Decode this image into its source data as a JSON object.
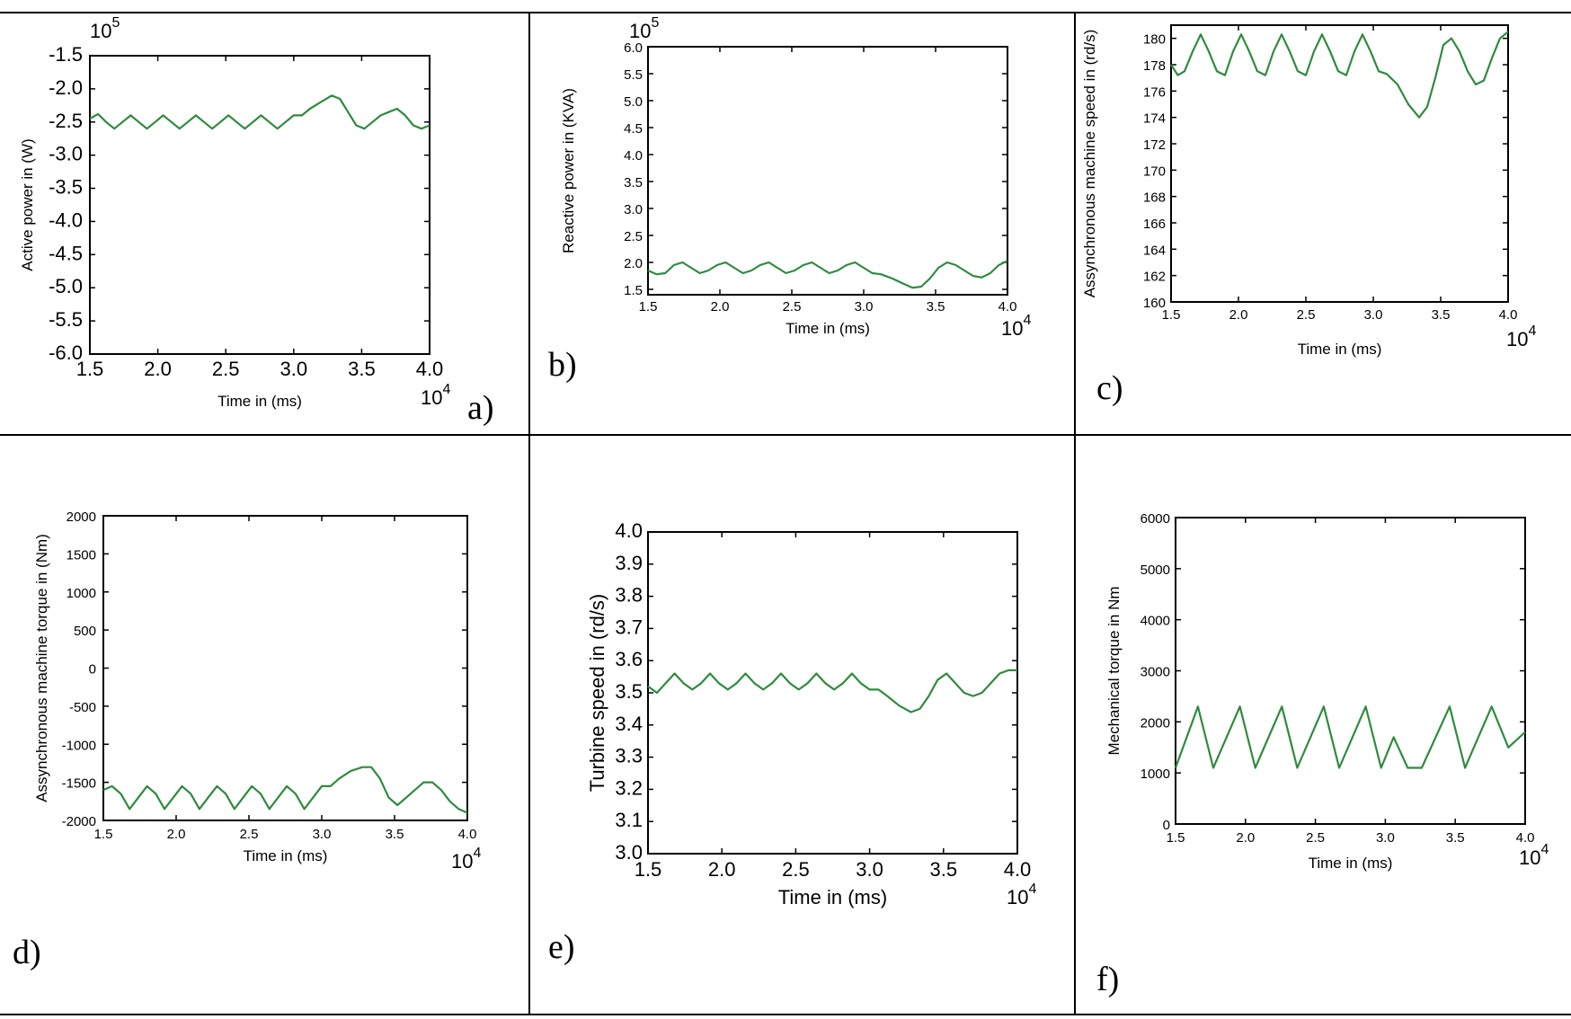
{
  "colors": {
    "line": "#2e8b3e",
    "grid": "#000000",
    "frame": "#000000",
    "background": "#ffffff"
  },
  "chart_data": [
    {
      "panel": "a)",
      "type": "line",
      "title": "",
      "xlabel": "Time in (ms)",
      "ylabel": "Active power in (W)",
      "xlim": [
        1.5,
        4.0
      ],
      "ylim": [
        -6.0,
        -1.5
      ],
      "x_multiplier": "10^4",
      "y_multiplier": "10^5",
      "xticks": [
        "1.5",
        "2.0",
        "2.5",
        "3.0",
        "3.5",
        "4.0"
      ],
      "yticks": [
        "-1.5",
        "-2.0",
        "-2.5",
        "-3.0",
        "-3.5",
        "-4.0",
        "-4.5",
        "-5.0",
        "-5.5",
        "-6.0"
      ],
      "series": [
        {
          "x": [
            1.5,
            1.56,
            1.62,
            1.68,
            1.74,
            1.8,
            1.86,
            1.92,
            1.98,
            2.04,
            2.1,
            2.16,
            2.22,
            2.28,
            2.34,
            2.4,
            2.46,
            2.52,
            2.58,
            2.64,
            2.7,
            2.76,
            2.82,
            2.88,
            2.94,
            3.0,
            3.06,
            3.12,
            3.2,
            3.28,
            3.34,
            3.4,
            3.46,
            3.52,
            3.58,
            3.64,
            3.7,
            3.76,
            3.82,
            3.88,
            3.94,
            4.0
          ],
          "y": [
            -2.45,
            -2.38,
            -2.5,
            -2.6,
            -2.5,
            -2.4,
            -2.5,
            -2.6,
            -2.5,
            -2.4,
            -2.5,
            -2.6,
            -2.5,
            -2.4,
            -2.5,
            -2.6,
            -2.5,
            -2.4,
            -2.5,
            -2.6,
            -2.5,
            -2.4,
            -2.5,
            -2.6,
            -2.5,
            -2.4,
            -2.4,
            -2.3,
            -2.2,
            -2.1,
            -2.15,
            -2.35,
            -2.55,
            -2.6,
            -2.5,
            -2.4,
            -2.35,
            -2.3,
            -2.4,
            -2.55,
            -2.6,
            -2.55
          ]
        }
      ]
    },
    {
      "panel": "b)",
      "type": "line",
      "title": "",
      "xlabel": "Time in (ms)",
      "ylabel": "Reactive power in (KVA)",
      "xlim": [
        1.5,
        4.0
      ],
      "ylim": [
        1.4,
        6.0
      ],
      "x_multiplier": "10^4",
      "y_multiplier": "10^5",
      "xticks": [
        "1.5",
        "2.0",
        "2.5",
        "3.0",
        "3.5",
        "4.0"
      ],
      "yticks": [
        "6.0",
        "5.5",
        "5.0",
        "4.5",
        "4.0",
        "3.5",
        "3.0",
        "2.5",
        "2.0",
        "1.5"
      ],
      "series": [
        {
          "x": [
            1.5,
            1.56,
            1.62,
            1.68,
            1.74,
            1.8,
            1.86,
            1.92,
            1.98,
            2.04,
            2.1,
            2.16,
            2.22,
            2.28,
            2.34,
            2.4,
            2.46,
            2.52,
            2.58,
            2.64,
            2.7,
            2.76,
            2.82,
            2.88,
            2.94,
            3.0,
            3.06,
            3.12,
            3.2,
            3.28,
            3.34,
            3.4,
            3.46,
            3.52,
            3.58,
            3.64,
            3.7,
            3.76,
            3.82,
            3.88,
            3.94,
            4.0
          ],
          "y": [
            1.85,
            1.78,
            1.8,
            1.95,
            2.0,
            1.9,
            1.8,
            1.85,
            1.95,
            2.0,
            1.9,
            1.8,
            1.85,
            1.95,
            2.0,
            1.9,
            1.8,
            1.85,
            1.95,
            2.0,
            1.9,
            1.8,
            1.85,
            1.95,
            2.0,
            1.9,
            1.8,
            1.78,
            1.7,
            1.6,
            1.53,
            1.55,
            1.7,
            1.9,
            2.0,
            1.95,
            1.85,
            1.75,
            1.72,
            1.8,
            1.95,
            2.03
          ]
        }
      ]
    },
    {
      "panel": "c)",
      "type": "line",
      "title": "",
      "xlabel": "Time in (ms)",
      "ylabel": "Assynchronous machine speed in (rd/s)",
      "xlim": [
        1.5,
        4.0
      ],
      "ylim": [
        160,
        181
      ],
      "x_multiplier": "10^4",
      "xticks": [
        "1.5",
        "2.0",
        "2.5",
        "3.0",
        "3.5",
        "4.0"
      ],
      "yticks": [
        "180",
        "178",
        "176",
        "174",
        "172",
        "170",
        "168",
        "166",
        "164",
        "162",
        "160"
      ],
      "series": [
        {
          "x": [
            1.5,
            1.55,
            1.6,
            1.66,
            1.72,
            1.78,
            1.84,
            1.9,
            1.96,
            2.02,
            2.08,
            2.14,
            2.2,
            2.26,
            2.32,
            2.38,
            2.44,
            2.5,
            2.56,
            2.62,
            2.68,
            2.74,
            2.8,
            2.86,
            2.92,
            2.98,
            3.04,
            3.1,
            3.18,
            3.26,
            3.34,
            3.4,
            3.46,
            3.52,
            3.58,
            3.64,
            3.7,
            3.76,
            3.82,
            3.88,
            3.94,
            4.0
          ],
          "y": [
            178.0,
            177.2,
            177.5,
            179.0,
            180.3,
            179.0,
            177.5,
            177.2,
            179.0,
            180.3,
            179.0,
            177.5,
            177.2,
            179.0,
            180.3,
            179.0,
            177.5,
            177.2,
            179.0,
            180.3,
            179.0,
            177.5,
            177.2,
            179.0,
            180.3,
            179.0,
            177.5,
            177.3,
            176.5,
            175.0,
            174.0,
            174.8,
            177.0,
            179.5,
            180.0,
            179.0,
            177.5,
            176.5,
            176.8,
            178.5,
            180.0,
            180.5
          ]
        }
      ]
    },
    {
      "panel": "d)",
      "type": "line",
      "title": "",
      "xlabel": "Time in (ms)",
      "ylabel": "Assynchronous machine torque  in (Nm)",
      "xlim": [
        1.5,
        4.0
      ],
      "ylim": [
        -2000,
        2000
      ],
      "x_multiplier": "10^4",
      "xticks": [
        "1.5",
        "2.0",
        "2.5",
        "3.0",
        "3.5",
        "4.0"
      ],
      "yticks": [
        "2000",
        "1500",
        "1000",
        "500",
        "0",
        "-500",
        "-1000",
        "-1500",
        "-2000"
      ],
      "series": [
        {
          "x": [
            1.5,
            1.56,
            1.62,
            1.68,
            1.74,
            1.8,
            1.86,
            1.92,
            1.98,
            2.04,
            2.1,
            2.16,
            2.22,
            2.28,
            2.34,
            2.4,
            2.46,
            2.52,
            2.58,
            2.64,
            2.7,
            2.76,
            2.82,
            2.88,
            2.94,
            3.0,
            3.06,
            3.12,
            3.2,
            3.28,
            3.34,
            3.4,
            3.46,
            3.52,
            3.58,
            3.64,
            3.7,
            3.76,
            3.82,
            3.88,
            3.94,
            4.0
          ],
          "y": [
            -1600,
            -1550,
            -1650,
            -1850,
            -1700,
            -1550,
            -1650,
            -1850,
            -1700,
            -1550,
            -1650,
            -1850,
            -1700,
            -1550,
            -1650,
            -1850,
            -1700,
            -1550,
            -1650,
            -1850,
            -1700,
            -1550,
            -1650,
            -1850,
            -1700,
            -1550,
            -1550,
            -1450,
            -1350,
            -1300,
            -1300,
            -1450,
            -1700,
            -1800,
            -1700,
            -1600,
            -1500,
            -1500,
            -1600,
            -1750,
            -1850,
            -1900
          ]
        }
      ]
    },
    {
      "panel": "e)",
      "type": "line",
      "title": "",
      "xlabel": "Time in (ms)",
      "ylabel": "Turbine speed in (rd/s)",
      "xlim": [
        1.5,
        4.0
      ],
      "ylim": [
        3.0,
        4.0
      ],
      "x_multiplier": "10^4",
      "xticks": [
        "1.5",
        "2.0",
        "2.5",
        "3.0",
        "3.5",
        "4.0"
      ],
      "yticks": [
        "4.0",
        "3.9",
        "3.8",
        "3.7",
        "3.6",
        "3.5",
        "3.4",
        "3.3",
        "3.2",
        "3.1",
        "3.0"
      ],
      "series": [
        {
          "x": [
            1.5,
            1.56,
            1.62,
            1.68,
            1.74,
            1.8,
            1.86,
            1.92,
            1.98,
            2.04,
            2.1,
            2.16,
            2.22,
            2.28,
            2.34,
            2.4,
            2.46,
            2.52,
            2.58,
            2.64,
            2.7,
            2.76,
            2.82,
            2.88,
            2.94,
            3.0,
            3.06,
            3.12,
            3.2,
            3.28,
            3.34,
            3.4,
            3.46,
            3.52,
            3.58,
            3.64,
            3.7,
            3.76,
            3.82,
            3.88,
            3.94,
            4.0
          ],
          "y": [
            3.52,
            3.5,
            3.53,
            3.56,
            3.53,
            3.51,
            3.53,
            3.56,
            3.53,
            3.51,
            3.53,
            3.56,
            3.53,
            3.51,
            3.53,
            3.56,
            3.53,
            3.51,
            3.53,
            3.56,
            3.53,
            3.51,
            3.53,
            3.56,
            3.53,
            3.51,
            3.51,
            3.49,
            3.46,
            3.44,
            3.45,
            3.49,
            3.54,
            3.56,
            3.53,
            3.5,
            3.49,
            3.5,
            3.53,
            3.56,
            3.57,
            3.57
          ]
        }
      ]
    },
    {
      "panel": "f)",
      "type": "line",
      "title": "",
      "xlabel": "Time in (ms)",
      "ylabel": "Mechanical torque in Nm",
      "xlim": [
        1.5,
        4.0
      ],
      "ylim": [
        0,
        6000
      ],
      "x_multiplier": "10^4",
      "xticks": [
        "1.5",
        "2.0",
        "2.5",
        "3.0",
        "3.5",
        "4.0"
      ],
      "yticks": [
        "6000",
        "5000",
        "4000",
        "3000",
        "2000",
        "1000",
        "0"
      ],
      "series": [
        {
          "x": [
            1.5,
            1.66,
            1.77,
            1.96,
            2.07,
            2.26,
            2.37,
            2.56,
            2.67,
            2.86,
            2.97,
            3.06,
            3.16,
            3.26,
            3.46,
            3.57,
            3.76,
            3.88,
            4.0
          ],
          "y": [
            1100,
            2300,
            1100,
            2300,
            1100,
            2300,
            1100,
            2300,
            1100,
            2300,
            1100,
            1700,
            1100,
            1100,
            2300,
            1100,
            2300,
            1500,
            1800
          ]
        }
      ]
    }
  ]
}
